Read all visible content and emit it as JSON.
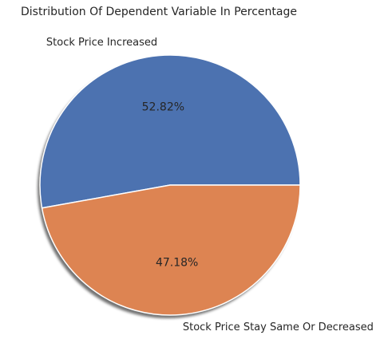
{
  "chart_data": {
    "type": "pie",
    "title": "Distribution Of Dependent Variable In Percentage",
    "labels": [
      "Stock Price Increased",
      "Stock Price Stay Same Or Decreased"
    ],
    "values": [
      52.82,
      47.18
    ],
    "value_labels": [
      "52.82%",
      "47.18%"
    ],
    "colors": [
      "#4c72b0",
      "#dd8452"
    ],
    "start_angle_deg": 0,
    "direction": "counterclockwise",
    "shadow": true,
    "legend": "none"
  }
}
